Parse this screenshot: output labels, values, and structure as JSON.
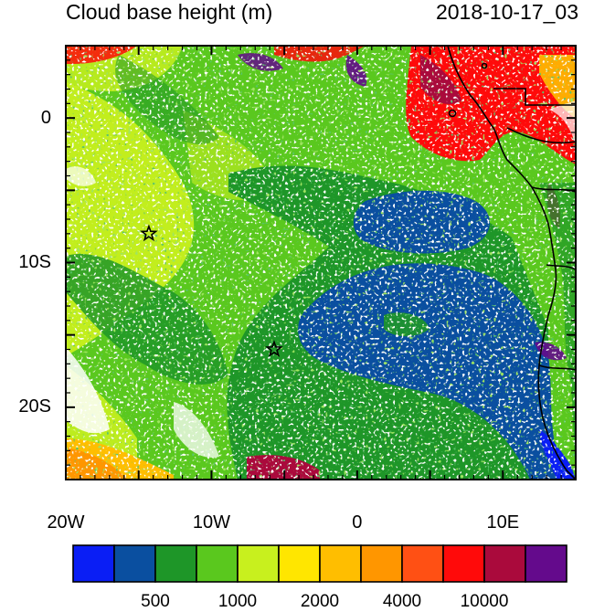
{
  "title_left": "Cloud base height (m)",
  "title_right": "2018-10-17_03",
  "x_ticks": [
    {
      "value": -20,
      "label": "20W"
    },
    {
      "value": -10,
      "label": "10W"
    },
    {
      "value": 0,
      "label": "0"
    },
    {
      "value": 10,
      "label": "10E"
    }
  ],
  "y_ticks": [
    {
      "value": 0,
      "label": "0"
    },
    {
      "value": -10,
      "label": "10S"
    },
    {
      "value": -20,
      "label": "20S"
    }
  ],
  "lon_range": [
    -20,
    15
  ],
  "lat_range": [
    -25,
    5
  ],
  "colorbar": {
    "colors": [
      "#0a1ef5",
      "#0a4fa0",
      "#1e9628",
      "#5ac81e",
      "#c8f01e",
      "#ffe600",
      "#ffbe00",
      "#ff9600",
      "#ff5014",
      "#ff0a0a",
      "#aa0a3c",
      "#640a8c"
    ],
    "labels": [
      {
        "after_box": 2,
        "text": "500"
      },
      {
        "after_box": 4,
        "text": "1000"
      },
      {
        "after_box": 6,
        "text": "2000"
      },
      {
        "after_box": 8,
        "text": "4000"
      },
      {
        "after_box": 10,
        "text": "10000"
      }
    ]
  },
  "markers": [
    {
      "lon": -14.3,
      "lat": -8.0,
      "symbol": "star"
    },
    {
      "lon": -5.7,
      "lat": -16.0,
      "symbol": "star"
    }
  ]
}
